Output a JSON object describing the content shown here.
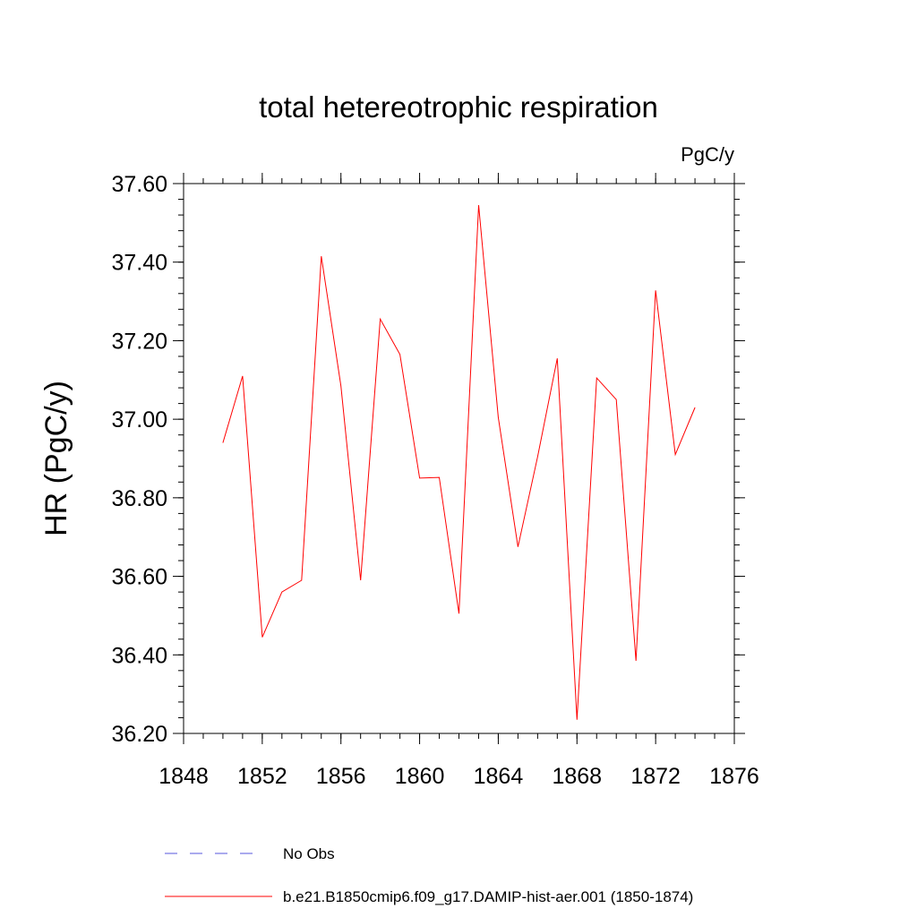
{
  "chart_data": {
    "type": "line",
    "title": "total hetereotrophic respiration",
    "units": "PgC/y",
    "ylabel": "HR  (PgC/y)",
    "xlabel": "",
    "xlim": [
      1848,
      1876
    ],
    "ylim": [
      36.2,
      37.6
    ],
    "xticks": [
      1848,
      1852,
      1856,
      1860,
      1864,
      1868,
      1872,
      1876
    ],
    "xtick_labels": [
      "1848",
      "1852",
      "1856",
      "1860",
      "1864",
      "1868",
      "1872",
      "1876"
    ],
    "yticks": [
      36.2,
      36.4,
      36.6,
      36.8,
      37.0,
      37.2,
      37.4,
      37.6
    ],
    "ytick_labels": [
      "36.20",
      "36.40",
      "36.60",
      "36.80",
      "37.00",
      "37.20",
      "37.40",
      "37.60"
    ],
    "grid": false,
    "legend_placement": "bottom",
    "series": [
      {
        "name": "b.e21.B1850cmip6.f09_g17.DAMIP-hist-aer.001 (1850-1874)",
        "color": "#ff0000",
        "dash": "solid",
        "x": [
          1850,
          1851,
          1852,
          1853,
          1854,
          1855,
          1856,
          1857,
          1858,
          1859,
          1860,
          1861,
          1862,
          1863,
          1864,
          1865,
          1866,
          1867,
          1868,
          1869,
          1870,
          1871,
          1872,
          1873,
          1874
        ],
        "y": [
          36.94,
          37.11,
          36.445,
          36.56,
          36.59,
          37.415,
          37.085,
          36.59,
          37.255,
          37.165,
          36.85,
          36.852,
          36.505,
          37.545,
          37.005,
          36.675,
          36.905,
          37.155,
          36.235,
          37.105,
          37.05,
          36.385,
          37.328,
          36.91,
          37.03
        ]
      },
      {
        "name": "No Obs",
        "color": "#5555dd",
        "dash": "dashed",
        "x": [],
        "y": []
      }
    ]
  }
}
